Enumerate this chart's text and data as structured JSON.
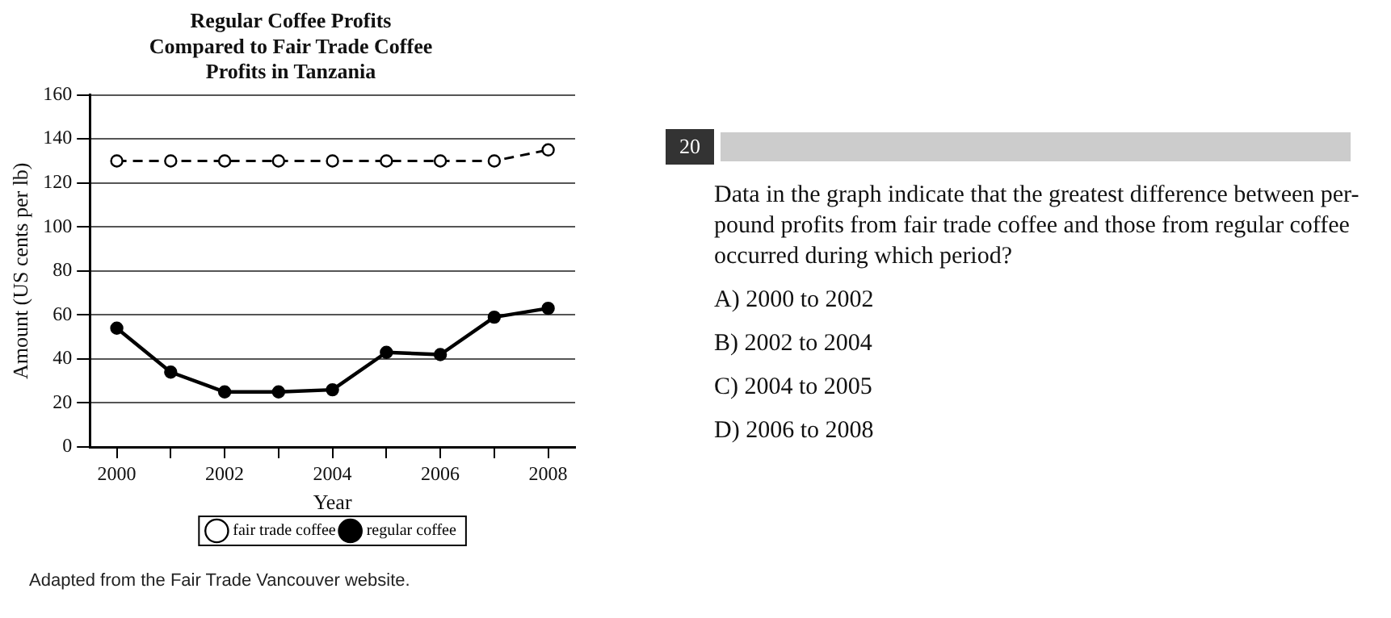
{
  "chart_data": {
    "type": "line",
    "title": "Regular Coffee Profits\nCompared to Fair Trade Coffee\nProfits in Tanzania",
    "xlabel": "Year",
    "ylabel": "Amount (US cents per lb)",
    "x": [
      2000,
      2001,
      2002,
      2003,
      2004,
      2005,
      2006,
      2007,
      2008
    ],
    "series": [
      {
        "name": "fair trade coffee",
        "color": "#000000",
        "line_style": "dashed",
        "marker": "circle",
        "values": [
          130,
          130,
          130,
          130,
          130,
          130,
          130,
          130,
          135
        ]
      },
      {
        "name": "regular coffee",
        "color": "#000000",
        "line_style": "solid",
        "marker": "circle",
        "values": [
          54,
          34,
          25,
          25,
          26,
          43,
          42,
          59,
          63
        ]
      }
    ],
    "xlim": [
      1999.5,
      2008.5
    ],
    "xticks": [
      2000,
      {
        "value": 2001,
        "label": null
      },
      2002,
      {
        "value": 2003,
        "label": null
      },
      2004,
      {
        "value": 2005,
        "label": null
      },
      2006,
      {
        "value": 2007,
        "label": null
      },
      2008
    ],
    "ylim": [
      0,
      160
    ],
    "yticks": [
      0,
      20,
      40,
      60,
      80,
      100,
      120,
      140,
      160
    ],
    "grid": "y",
    "legend": "bottom",
    "annotations": [
      "Adapted from the Fair Trade Vancouver website.",
      "20",
      "Data in the graph indicate that the greatest difference between per-pound profits from fair trade coffee and those from regular coffee occurred during which period?",
      "A)  2000 to 2002",
      "B)  2002 to 2004",
      "C)  2004 to 2005",
      "D)  2006 to 2008"
    ]
  }
}
